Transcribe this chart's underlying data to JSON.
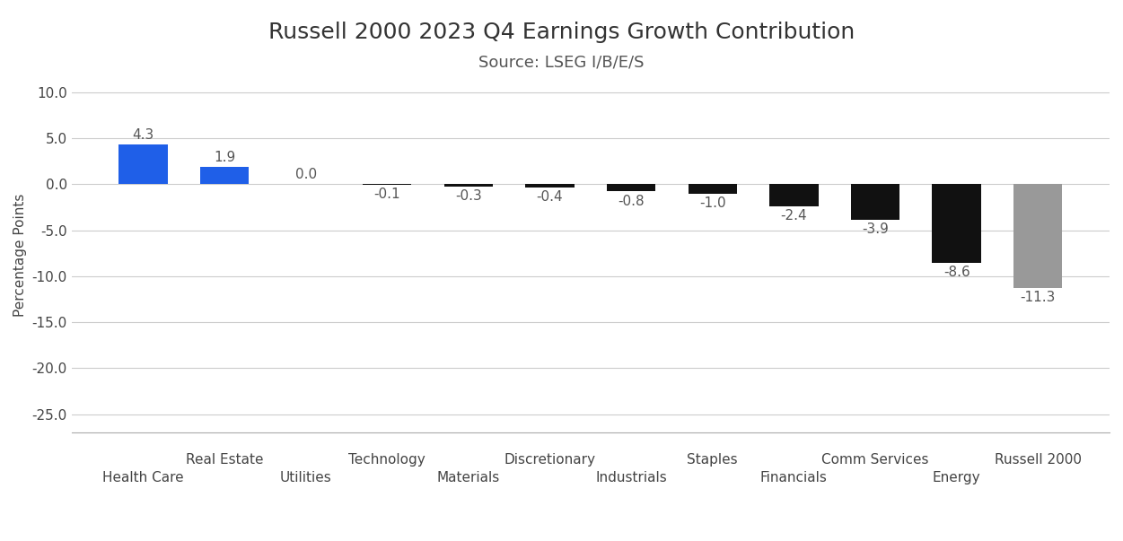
{
  "title": "Russell 2000 2023 Q4 Earnings Growth Contribution",
  "subtitle": "Source: LSEG I/B/E/S",
  "ylabel": "Percentage Points",
  "categories": [
    "Health Care",
    "Real Estate",
    "Utilities",
    "Technology",
    "Materials",
    "Discretionary",
    "Industrials",
    "Staples",
    "Financials",
    "Comm Services",
    "Energy",
    "Russell 2000"
  ],
  "values": [
    4.3,
    1.9,
    0.0,
    -0.1,
    -0.3,
    -0.4,
    -0.8,
    -1.0,
    -2.4,
    -3.9,
    -8.6,
    -11.3
  ],
  "colors": [
    "#1f5fe8",
    "#1f5fe8",
    "#111111",
    "#111111",
    "#111111",
    "#111111",
    "#111111",
    "#111111",
    "#111111",
    "#111111",
    "#111111",
    "#999999"
  ],
  "ylim": [
    -27,
    11.5
  ],
  "yticks": [
    10.0,
    5.0,
    0.0,
    -5.0,
    -10.0,
    -15.0,
    -20.0,
    -25.0
  ],
  "bar_width": 0.6,
  "title_fontsize": 18,
  "subtitle_fontsize": 13,
  "value_label_fontsize": 11,
  "tick_fontsize": 11,
  "ylabel_fontsize": 11,
  "background_color": "#ffffff",
  "grid_color": "#cccccc"
}
